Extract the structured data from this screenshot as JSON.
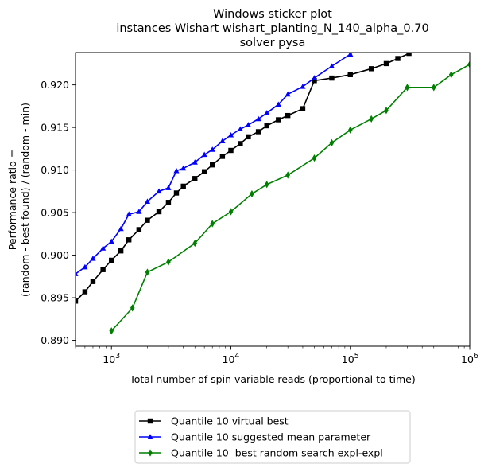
{
  "chart_data": {
    "type": "line",
    "title": [
      "Windows sticker plot",
      "instances Wishart wishart_planting_N_140_alpha_0.70",
      "solver pysa"
    ],
    "xlabel": "Total number of spin variable reads (proportional to time)",
    "ylabel": [
      "Performance ratio =",
      "(random - best found) / (random - min)"
    ],
    "xscale": "log",
    "xlim": [
      500,
      1000000
    ],
    "ylim": [
      0.8893,
      0.9238
    ],
    "x_ticks": [
      {
        "base": "10",
        "exp": "3",
        "value": 1000
      },
      {
        "base": "10",
        "exp": "4",
        "value": 10000
      },
      {
        "base": "10",
        "exp": "5",
        "value": 100000
      },
      {
        "base": "10",
        "exp": "6",
        "value": 1000000
      }
    ],
    "y_ticks": [
      "0.890",
      "0.895",
      "0.900",
      "0.905",
      "0.910",
      "0.915",
      "0.920"
    ],
    "grid": false,
    "legend_position": "below-plot",
    "series": [
      {
        "name": "Quantile 10 virtual best",
        "color": "#000000",
        "marker": "square",
        "points": [
          [
            500,
            0.8946
          ],
          [
            600,
            0.8957
          ],
          [
            700,
            0.8969
          ],
          [
            850,
            0.8983
          ],
          [
            1000,
            0.8994
          ],
          [
            1200,
            0.9005
          ],
          [
            1400,
            0.9018
          ],
          [
            1700,
            0.903
          ],
          [
            2000,
            0.9041
          ],
          [
            2500,
            0.9051
          ],
          [
            3000,
            0.9062
          ],
          [
            3500,
            0.9073
          ],
          [
            4000,
            0.9081
          ],
          [
            5000,
            0.909
          ],
          [
            6000,
            0.9098
          ],
          [
            7000,
            0.9106
          ],
          [
            8500,
            0.9116
          ],
          [
            10000,
            0.9123
          ],
          [
            12000,
            0.9131
          ],
          [
            14000,
            0.9139
          ],
          [
            17000,
            0.9145
          ],
          [
            20000,
            0.9152
          ],
          [
            25000,
            0.9159
          ],
          [
            30000,
            0.9164
          ],
          [
            40000,
            0.9172
          ],
          [
            50000,
            0.9205
          ],
          [
            70000,
            0.9208
          ],
          [
            100000,
            0.9212
          ],
          [
            150000,
            0.9219
          ],
          [
            200000,
            0.9225
          ],
          [
            250000,
            0.9231
          ],
          [
            310000,
            0.9237
          ]
        ]
      },
      {
        "name": "Quantile 10 suggested mean parameter",
        "color": "#0000ff",
        "marker": "triangle",
        "points": [
          [
            500,
            0.8978
          ],
          [
            600,
            0.8986
          ],
          [
            700,
            0.8996
          ],
          [
            850,
            0.9008
          ],
          [
            1000,
            0.9016
          ],
          [
            1200,
            0.9031
          ],
          [
            1400,
            0.9048
          ],
          [
            1700,
            0.9051
          ],
          [
            2000,
            0.9063
          ],
          [
            2500,
            0.9075
          ],
          [
            3000,
            0.9079
          ],
          [
            3500,
            0.9099
          ],
          [
            4000,
            0.9102
          ],
          [
            5000,
            0.9109
          ],
          [
            6000,
            0.9118
          ],
          [
            7000,
            0.9124
          ],
          [
            8500,
            0.9134
          ],
          [
            10000,
            0.9141
          ],
          [
            12000,
            0.9148
          ],
          [
            14000,
            0.9153
          ],
          [
            17000,
            0.916
          ],
          [
            20000,
            0.9167
          ],
          [
            25000,
            0.9177
          ],
          [
            30000,
            0.9189
          ],
          [
            40000,
            0.9198
          ],
          [
            50000,
            0.9208
          ],
          [
            70000,
            0.9222
          ],
          [
            100000,
            0.9236
          ],
          [
            110000,
            0.9241
          ]
        ]
      },
      {
        "name": "Quantile 10  best random search expl-expl",
        "color": "#008000",
        "marker": "diamond",
        "points": [
          [
            1000,
            0.8911
          ],
          [
            1500,
            0.8938
          ],
          [
            2000,
            0.898
          ],
          [
            3000,
            0.8992
          ],
          [
            5000,
            0.9014
          ],
          [
            7000,
            0.9037
          ],
          [
            10000,
            0.9051
          ],
          [
            15000,
            0.9072
          ],
          [
            20000,
            0.9083
          ],
          [
            30000,
            0.9094
          ],
          [
            50000,
            0.9114
          ],
          [
            70000,
            0.9132
          ],
          [
            100000,
            0.9147
          ],
          [
            150000,
            0.916
          ],
          [
            200000,
            0.917
          ],
          [
            300000,
            0.9197
          ],
          [
            500000,
            0.9197
          ],
          [
            700000,
            0.9212
          ],
          [
            1000000,
            0.9224
          ]
        ]
      }
    ]
  }
}
